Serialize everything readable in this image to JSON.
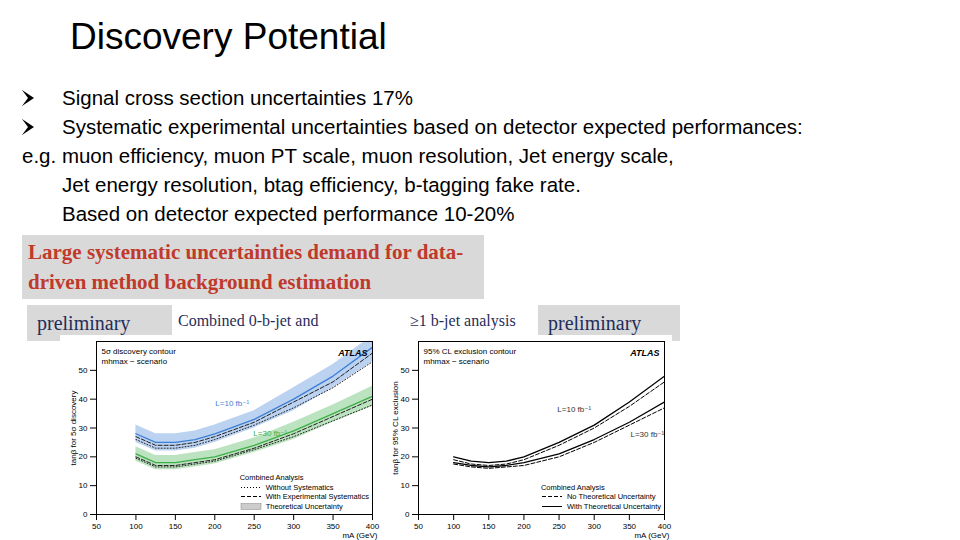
{
  "title": "Discovery Potential",
  "bullets": [
    {
      "lines": [
        "Signal cross section uncertainties 17%"
      ]
    },
    {
      "lines": [
        "Systematic experimental uncertainties based on detector expected performances:",
        "e.g. muon efficiency, muon PT scale, muon resolution, Jet energy scale,",
        "Jet energy resolution, btag efficiency, b-tagging fake rate.",
        "Based on detector expected performance 10-20%"
      ]
    }
  ],
  "highlight": "Large systematic uncertainties demand for data-driven method background estimation",
  "row": {
    "badge": "preliminary",
    "left_text": "Combined 0-b-jet and",
    "right_text": "≥1 b-jet analysis"
  },
  "chart_data": [
    {
      "type": "line",
      "x_label": "mA (GeV)",
      "y_label": "tanβ for 5σ discovery",
      "annotations": [
        "5σ discovery contour",
        "mhmax − scenario"
      ],
      "brand": "ATLAS",
      "xlim": [
        50,
        400
      ],
      "xticks": [
        50,
        100,
        150,
        200,
        250,
        300,
        350,
        400
      ],
      "ylim": [
        0,
        60
      ],
      "yticks": [
        0,
        10,
        20,
        30,
        40,
        50
      ],
      "x": [
        100,
        125,
        150,
        175,
        200,
        250,
        300,
        350,
        400
      ],
      "legend_title": "Combined Analysis",
      "legend_entries": [
        {
          "label": "Without Systematics",
          "line_style": "dotted"
        },
        {
          "label": "With Experimental Systematics",
          "line_style": "dashed"
        },
        {
          "label": "Theoretical Uncertainty",
          "marker": "band"
        }
      ],
      "series": [
        {
          "name": "L=10 fb⁻¹",
          "color": "#3d7fd6",
          "line_style": "solid",
          "values": [
            28,
            25,
            25,
            26,
            28,
            33,
            40,
            48,
            58
          ],
          "without_systematics": [
            26,
            23,
            23,
            24,
            26,
            31,
            37,
            44,
            53
          ],
          "with_experimental_systematics": [
            27,
            24,
            24,
            25,
            27,
            32,
            39,
            46,
            56
          ],
          "theoretical_low": [
            25,
            22,
            22,
            23,
            25,
            30,
            36,
            44,
            53
          ],
          "theoretical_high": [
            31,
            28,
            28,
            29,
            31,
            36,
            44,
            52,
            62
          ]
        },
        {
          "name": "L=30 fb⁻¹",
          "color": "#3fae49",
          "line_style": "solid",
          "values": [
            21,
            18,
            18,
            19,
            20,
            24,
            29,
            35,
            41
          ],
          "without_systematics": [
            19.5,
            16.5,
            16.5,
            17.5,
            18.5,
            22.5,
            27,
            32.5,
            38
          ],
          "with_experimental_systematics": [
            20,
            17,
            17,
            18,
            19,
            23,
            28,
            34,
            40
          ],
          "theoretical_low": [
            18.5,
            15.5,
            15.5,
            16.5,
            17.5,
            21.5,
            26,
            32,
            37.5
          ],
          "theoretical_high": [
            23.5,
            20.5,
            20.5,
            21.5,
            22.5,
            26.5,
            32,
            38,
            44.5
          ]
        }
      ]
    },
    {
      "type": "line",
      "x_label": "mA (GeV)",
      "y_label": "tanβ for 95% CL exclusion",
      "annotations": [
        "95% CL exclusion contour",
        "mhmax − scenario"
      ],
      "brand": "ATLAS",
      "xlim": [
        50,
        400
      ],
      "xticks": [
        50,
        100,
        150,
        200,
        250,
        300,
        350,
        400
      ],
      "ylim": [
        0,
        60
      ],
      "yticks": [
        0,
        10,
        20,
        30,
        40,
        50
      ],
      "x": [
        100,
        125,
        150,
        175,
        200,
        250,
        300,
        350,
        400
      ],
      "legend_title": "Combined Analysis",
      "legend_entries": [
        {
          "label": "No Theoretical Uncertainty",
          "line_style": "dashed"
        },
        {
          "label": "With Theoretical Uncertainty",
          "line_style": "solid"
        }
      ],
      "series": [
        {
          "name": "L=10 fb⁻¹",
          "color": "#000000",
          "line_style": "solid",
          "values": [
            20,
            18.5,
            18,
            18.5,
            20,
            25,
            31,
            39,
            48
          ],
          "no_theoretical_uncertainty": [
            19,
            17.5,
            17,
            17.5,
            19,
            24,
            30,
            37.5,
            46
          ]
        },
        {
          "name": "L=30 fb⁻¹",
          "color": "#000000",
          "line_style": "solid",
          "values": [
            18,
            17,
            16.5,
            17,
            18,
            21,
            26,
            32,
            39
          ],
          "no_theoretical_uncertainty": [
            17.5,
            16.5,
            16,
            16.5,
            17,
            20,
            25,
            31,
            37
          ]
        }
      ]
    }
  ]
}
